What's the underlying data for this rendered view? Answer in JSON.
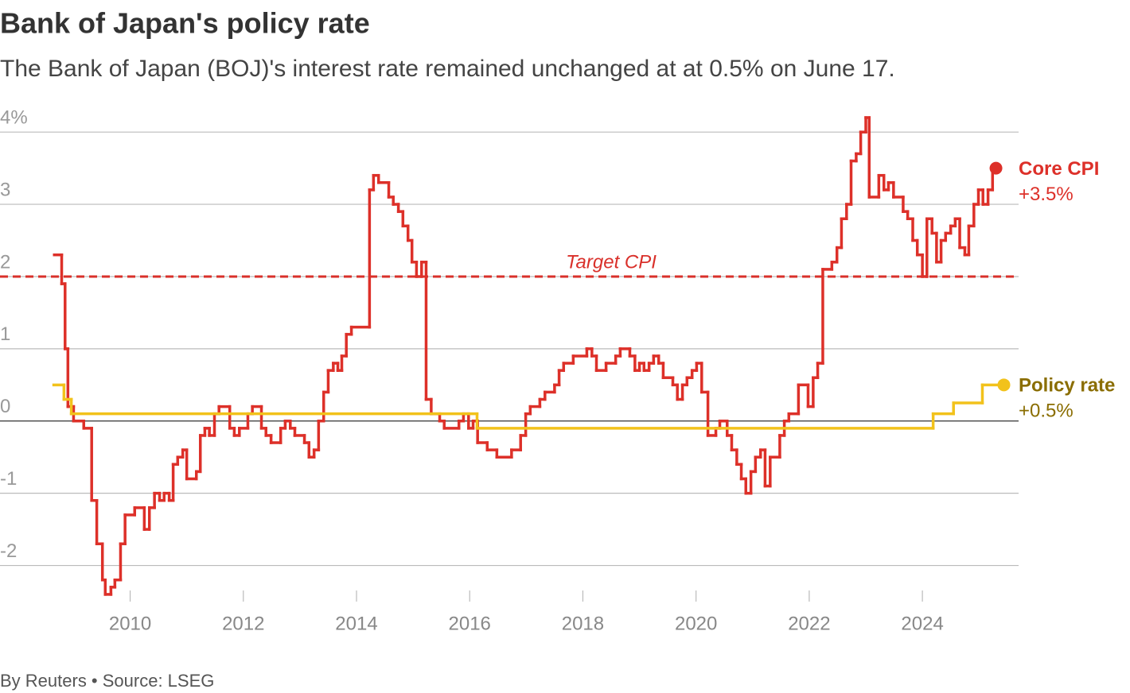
{
  "chart_data": {
    "type": "step",
    "title": "Bank of Japan's policy rate",
    "subtitle": "The Bank of Japan (BOJ)'s interest rate remained unchanged at at 0.5% on June 17.",
    "footer": "By Reuters • Source: LSEG",
    "xlim": [
      2007.7,
      2025.7
    ],
    "xticks": [
      2010,
      2012,
      2014,
      2016,
      2018,
      2020,
      2022,
      2024
    ],
    "ylim": [
      -2.5,
      4.2
    ],
    "yticks": [
      -2,
      -1,
      0,
      1,
      2,
      3,
      {
        "value": 4,
        "label": "4%"
      }
    ],
    "grid": true,
    "annotations": [
      {
        "text": "Target CPI",
        "y": 2,
        "color": "#d9302a"
      }
    ],
    "series": [
      {
        "name": "Core CPI",
        "label": "+3.5%",
        "color": "#dd3029",
        "label_color": "#dd3029",
        "x": [
          2008.66,
          2008.79,
          2008.85,
          2008.9,
          2009.0,
          2009.18,
          2009.32,
          2009.41,
          2009.51,
          2009.56,
          2009.66,
          2009.73,
          2009.83,
          2009.91,
          2010.08,
          2010.25,
          2010.34,
          2010.43,
          2010.52,
          2010.6,
          2010.69,
          2010.76,
          2010.84,
          2010.93,
          2011.0,
          2011.17,
          2011.24,
          2011.32,
          2011.4,
          2011.49,
          2011.57,
          2011.76,
          2011.84,
          2011.93,
          2012.08,
          2012.16,
          2012.32,
          2012.4,
          2012.49,
          2012.66,
          2012.74,
          2012.83,
          2012.91,
          2013.08,
          2013.16,
          2013.25,
          2013.33,
          2013.42,
          2013.5,
          2013.59,
          2013.67,
          2013.74,
          2013.82,
          2013.91,
          2014.23,
          2014.3,
          2014.39,
          2014.57,
          2014.65,
          2014.74,
          2014.82,
          2014.91,
          2014.98,
          2015.06,
          2015.15,
          2015.23,
          2015.32,
          2015.47,
          2015.55,
          2015.81,
          2015.89,
          2015.98,
          2016.06,
          2016.14,
          2016.31,
          2016.48,
          2016.74,
          2016.9,
          2016.99,
          2017.07,
          2017.24,
          2017.33,
          2017.5,
          2017.58,
          2017.66,
          2017.83,
          2018.07,
          2018.16,
          2018.24,
          2018.41,
          2018.58,
          2018.66,
          2018.83,
          2018.92,
          2019.0,
          2019.08,
          2019.17,
          2019.25,
          2019.34,
          2019.42,
          2019.59,
          2019.67,
          2019.76,
          2019.84,
          2019.93,
          2020.01,
          2020.1,
          2020.21,
          2020.35,
          2020.42,
          2020.55,
          2020.63,
          2020.72,
          2020.8,
          2020.88,
          2020.97,
          2021.05,
          2021.14,
          2021.22,
          2021.31,
          2021.48,
          2021.56,
          2021.64,
          2021.81,
          2021.98,
          2022.07,
          2022.15,
          2022.24,
          2022.4,
          2022.49,
          2022.57,
          2022.66,
          2022.74,
          2022.83,
          2022.91,
          2023.0,
          2023.06,
          2023.23,
          2023.32,
          2023.4,
          2023.49,
          2023.66,
          2023.74,
          2023.83,
          2023.91,
          2024.0,
          2024.08,
          2024.17,
          2024.25,
          2024.33,
          2024.41,
          2024.5,
          2024.58,
          2024.66,
          2024.75,
          2024.82,
          2024.91,
          2024.99,
          2025.07,
          2025.16,
          2025.24,
          2025.3
        ],
        "values": [
          2.3,
          1.9,
          1.0,
          0.2,
          0.0,
          -0.1,
          -1.1,
          -1.7,
          -2.2,
          -2.4,
          -2.3,
          -2.2,
          -1.7,
          -1.3,
          -1.2,
          -1.5,
          -1.2,
          -1.0,
          -1.1,
          -1.0,
          -1.1,
          -0.6,
          -0.5,
          -0.4,
          -0.8,
          -0.7,
          -0.2,
          -0.1,
          -0.2,
          0.1,
          0.2,
          -0.1,
          -0.2,
          -0.1,
          0.1,
          0.2,
          -0.1,
          -0.2,
          -0.3,
          -0.1,
          0.0,
          -0.1,
          -0.2,
          -0.3,
          -0.5,
          -0.4,
          0.0,
          0.4,
          0.7,
          0.8,
          0.7,
          0.9,
          1.2,
          1.3,
          3.2,
          3.4,
          3.3,
          3.1,
          3.0,
          2.9,
          2.7,
          2.5,
          2.2,
          2.0,
          2.2,
          0.3,
          0.1,
          0.0,
          -0.1,
          0.0,
          0.1,
          -0.1,
          0.0,
          -0.3,
          -0.4,
          -0.5,
          -0.4,
          -0.2,
          0.1,
          0.2,
          0.3,
          0.4,
          0.5,
          0.7,
          0.8,
          0.9,
          1.0,
          0.9,
          0.7,
          0.8,
          0.9,
          1.0,
          0.9,
          0.7,
          0.8,
          0.7,
          0.8,
          0.9,
          0.8,
          0.6,
          0.5,
          0.3,
          0.5,
          0.6,
          0.7,
          0.8,
          0.4,
          -0.2,
          -0.1,
          0.0,
          -0.2,
          -0.4,
          -0.6,
          -0.8,
          -1.0,
          -0.7,
          -0.5,
          -0.4,
          -0.9,
          -0.5,
          -0.2,
          0.0,
          0.1,
          0.5,
          0.2,
          0.6,
          0.8,
          2.1,
          2.2,
          2.4,
          2.8,
          3.0,
          3.6,
          3.7,
          4.0,
          4.2,
          3.1,
          3.4,
          3.2,
          3.3,
          3.1,
          2.9,
          2.8,
          2.5,
          2.3,
          2.0,
          2.8,
          2.6,
          2.2,
          2.5,
          2.6,
          2.7,
          2.8,
          2.4,
          2.3,
          2.7,
          3.0,
          3.2,
          3.0,
          3.2,
          3.5,
          3.5
        ]
      },
      {
        "name": "Policy rate",
        "label": "+0.5%",
        "color": "#f2c21b",
        "label_color": "#8a6d00",
        "x": [
          2008.65,
          2008.83,
          2008.96,
          2016.13,
          2024.19,
          2024.55,
          2025.06,
          2025.44
        ],
        "values": [
          0.5,
          0.3,
          0.1,
          -0.1,
          0.1,
          0.25,
          0.5,
          0.5
        ]
      }
    ]
  }
}
